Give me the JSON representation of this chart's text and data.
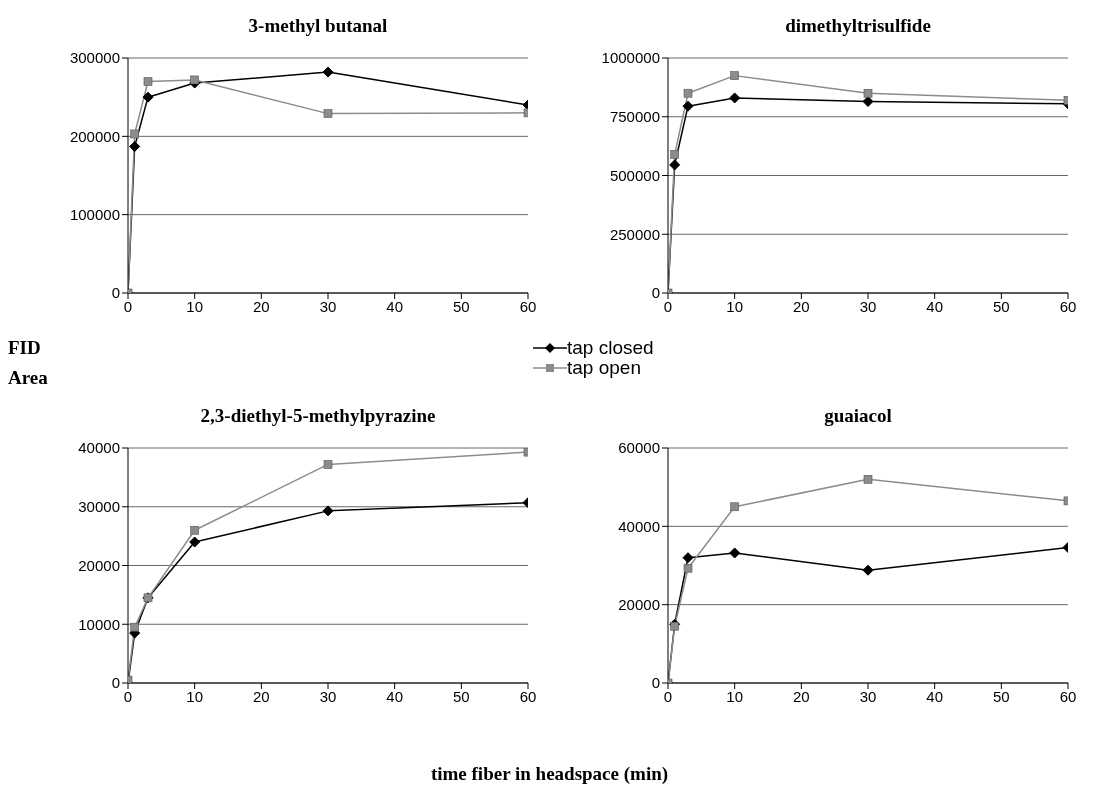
{
  "chart_data": [
    {
      "type": "line",
      "title": "3-methyl butanal",
      "ylabel": "FID\nArea",
      "x": [
        0,
        1,
        3,
        10,
        30,
        60
      ],
      "xlim": [
        0,
        60
      ],
      "xticks": [
        0,
        10,
        20,
        30,
        40,
        50,
        60
      ],
      "ylim": [
        0,
        300000
      ],
      "yticks": [
        0,
        100000,
        200000,
        300000
      ],
      "grid": "y",
      "legend": "right",
      "series": [
        {
          "name": "tap closed",
          "color": "#000000",
          "marker": "diamond",
          "values": [
            0,
            187000,
            250000,
            268000,
            282000,
            240000
          ]
        },
        {
          "name": "tap open",
          "color": "#8c8c8c",
          "marker": "square",
          "values": [
            0,
            203000,
            270000,
            272000,
            229000,
            230000
          ]
        }
      ]
    },
    {
      "type": "line",
      "title": "dimethyltrisulfide",
      "x": [
        0,
        1,
        3,
        10,
        30,
        60
      ],
      "xlim": [
        0,
        60
      ],
      "xticks": [
        0,
        10,
        20,
        30,
        40,
        50,
        60
      ],
      "ylim": [
        0,
        1000000
      ],
      "yticks": [
        0,
        250000,
        500000,
        750000,
        1000000
      ],
      "grid": "y",
      "series": [
        {
          "color": "#000000",
          "marker": "diamond",
          "values": [
            0,
            545000,
            795000,
            830000,
            815000,
            805000
          ]
        },
        {
          "color": "#8c8c8c",
          "marker": "square",
          "values": [
            0,
            590000,
            850000,
            925000,
            850000,
            820000
          ]
        }
      ]
    },
    {
      "type": "line",
      "title": "2,3-diethyl-5-methylpyrazine",
      "xlabel": "time fiber in headspace (min)",
      "x": [
        0,
        1,
        3,
        10,
        30,
        60
      ],
      "xlim": [
        0,
        60
      ],
      "xticks": [
        0,
        10,
        20,
        30,
        40,
        50,
        60
      ],
      "ylim": [
        0,
        40000
      ],
      "yticks": [
        0,
        10000,
        20000,
        30000,
        40000
      ],
      "grid": "y",
      "series": [
        {
          "color": "#000000",
          "marker": "diamond",
          "values": [
            0,
            8500,
            14500,
            24000,
            29300,
            30700
          ]
        },
        {
          "color": "#8c8c8c",
          "marker": "square",
          "values": [
            500,
            9500,
            14500,
            26000,
            37200,
            39300
          ]
        }
      ]
    },
    {
      "type": "line",
      "title": "guaiacol",
      "x": [
        0,
        1,
        3,
        10,
        30,
        60
      ],
      "xlim": [
        0,
        60
      ],
      "xticks": [
        0,
        10,
        20,
        30,
        40,
        50,
        60
      ],
      "ylim": [
        0,
        60000
      ],
      "yticks": [
        0,
        20000,
        40000,
        60000
      ],
      "grid": "y",
      "series": [
        {
          "color": "#000000",
          "marker": "diamond",
          "values": [
            0,
            15000,
            32000,
            33200,
            28800,
            34600
          ]
        },
        {
          "color": "#8c8c8c",
          "marker": "square",
          "values": [
            0,
            14500,
            29300,
            45000,
            52000,
            46500
          ]
        }
      ]
    }
  ]
}
